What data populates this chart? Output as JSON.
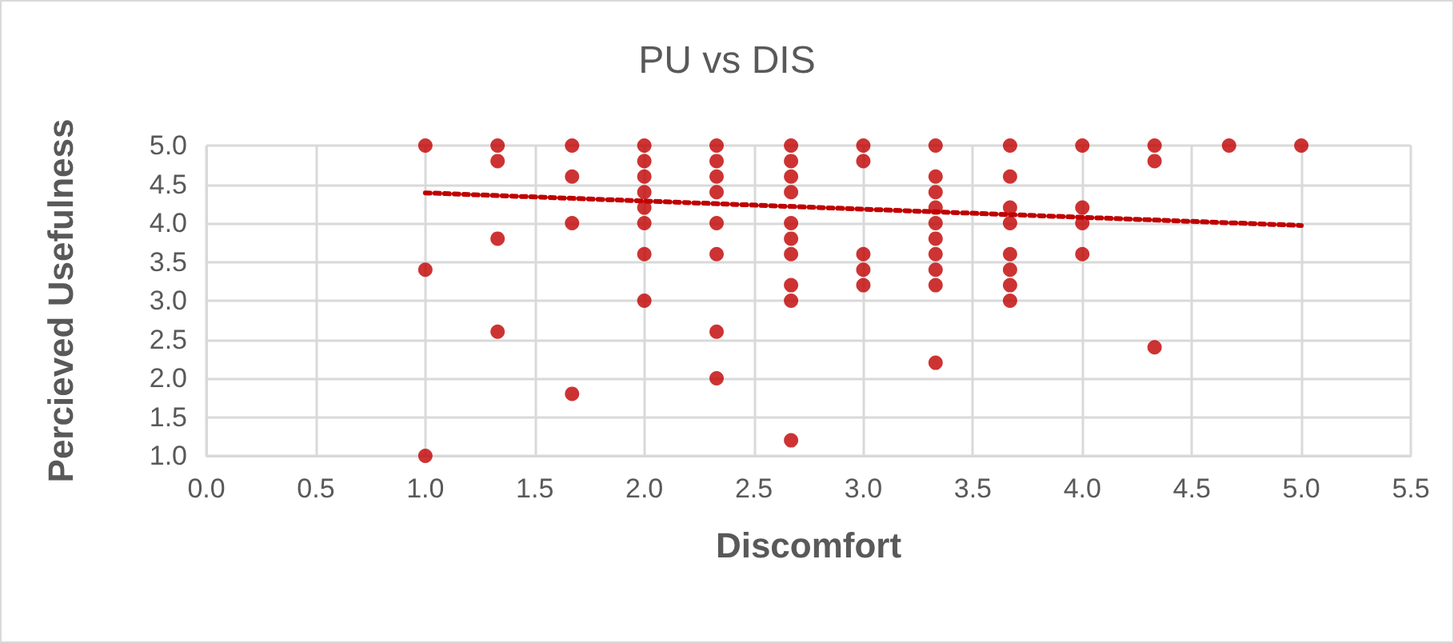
{
  "chart_data": {
    "type": "scatter",
    "title": "PU vs DIS",
    "xlabel": "Discomfort",
    "ylabel": "Percieved Usefulness",
    "xlim": [
      0,
      5.5
    ],
    "xticks": [
      {
        "value": 0,
        "label": "0.0"
      },
      {
        "value": 0.5,
        "label": "0.5"
      },
      {
        "value": 1,
        "label": "1.0"
      },
      {
        "value": 1.5,
        "label": "1.5"
      },
      {
        "value": 2,
        "label": "2.0"
      },
      {
        "value": 2.5,
        "label": "2.5"
      },
      {
        "value": 3,
        "label": "3.0"
      },
      {
        "value": 3.5,
        "label": "3.5"
      },
      {
        "value": 4,
        "label": "4.0"
      },
      {
        "value": 4.5,
        "label": "4.5"
      },
      {
        "value": 5,
        "label": "5.0"
      },
      {
        "value": 5.5,
        "label": "5.5"
      }
    ],
    "ylim": [
      1,
      5
    ],
    "yticks": [
      {
        "value": 1,
        "label": "1.0"
      },
      {
        "value": 1.5,
        "label": "1.5"
      },
      {
        "value": 2,
        "label": "2.0"
      },
      {
        "value": 2.5,
        "label": "2.5"
      },
      {
        "value": 3,
        "label": "3.0"
      },
      {
        "value": 3.5,
        "label": "3.5"
      },
      {
        "value": 4,
        "label": "4.0"
      },
      {
        "value": 4.5,
        "label": "4.5"
      },
      {
        "value": 5,
        "label": "5.0"
      }
    ],
    "grid": true,
    "marker": "circle",
    "series": [
      {
        "color": "#c00000",
        "x": [
          1,
          1,
          1,
          1.33,
          1.33,
          1.33,
          1.33,
          1.67,
          1.67,
          1.67,
          1.67,
          2,
          2,
          2,
          2,
          2,
          2,
          2,
          2,
          2.33,
          2.33,
          2.33,
          2.33,
          2.33,
          2.33,
          2.33,
          2.33,
          2.67,
          2.67,
          2.67,
          2.67,
          2.67,
          2.67,
          2.67,
          2.67,
          2.67,
          2.67,
          3,
          3,
          3,
          3,
          3,
          3.33,
          3.33,
          3.33,
          3.33,
          3.33,
          3.33,
          3.33,
          3.33,
          3.33,
          3.33,
          3.67,
          3.67,
          3.67,
          3.67,
          3.67,
          3.67,
          3.67,
          3.67,
          4,
          4,
          4,
          4,
          4.33,
          4.33,
          4.33,
          4.67,
          5
        ],
        "values": [
          5,
          3.4,
          1,
          5,
          4.8,
          3.8,
          2.6,
          5,
          4.6,
          4,
          1.8,
          5,
          4.8,
          4.6,
          4.4,
          4.2,
          4,
          3.6,
          3,
          5,
          4.8,
          4.6,
          4.4,
          4,
          3.6,
          2.6,
          2,
          5,
          4.8,
          4.6,
          4.4,
          4,
          3.8,
          3.6,
          3.2,
          3,
          1.2,
          5,
          4.8,
          3.6,
          3.4,
          3.2,
          5,
          4.6,
          4.4,
          4.2,
          4,
          3.8,
          3.6,
          3.4,
          3.2,
          2.2,
          5,
          4.6,
          4.2,
          4,
          3.6,
          3.4,
          3.2,
          3,
          5,
          4.2,
          4,
          3.6,
          5,
          4.8,
          2.4,
          5,
          5
        ]
      },
      {
        "type": "line",
        "color": "#c00000",
        "line_style": "dotted",
        "marker": "none",
        "x": [
          1,
          5
        ],
        "values": [
          4.39,
          3.97
        ]
      }
    ]
  }
}
